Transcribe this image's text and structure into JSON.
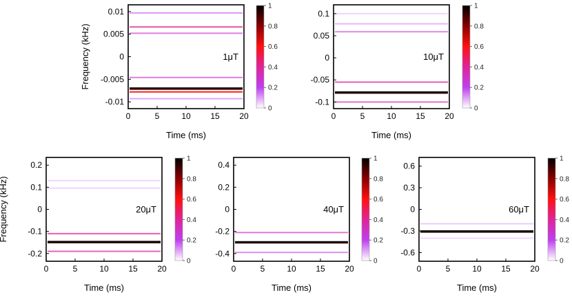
{
  "chart_data": [
    {
      "type": "heatmap",
      "field_label": "1μT",
      "xlabel": "Time (ms)",
      "ylabel": "Frequency (kHz)",
      "xlim": [
        0,
        20
      ],
      "ylim": [
        -0.0115,
        0.0115
      ],
      "xticks": [
        "0",
        "5",
        "10",
        "15",
        "20"
      ],
      "yticks": [
        {
          "v": 0.01,
          "label": "0.01"
        },
        {
          "v": 0.005,
          "label": "0.005"
        },
        {
          "v": 0,
          "label": "0"
        },
        {
          "v": -0.005,
          "label": "-0.005"
        },
        {
          "v": -0.01,
          "label": "-0.01"
        }
      ],
      "bands": [
        {
          "y": 0.0097,
          "intensity": 0.2
        },
        {
          "y": 0.0066,
          "intensity": 0.42
        },
        {
          "y": 0.0052,
          "intensity": 0.28
        },
        {
          "y": -0.0046,
          "intensity": 0.3
        },
        {
          "y": -0.0071,
          "intensity": 0.92
        },
        {
          "y": -0.0078,
          "intensity": 0.6
        },
        {
          "y": -0.0093,
          "intensity": 0.18
        }
      ],
      "colorbar": {
        "min": 0,
        "max": 1,
        "ticks": [
          "0",
          "0.2",
          "0.4",
          "0.6",
          "0.8",
          "1"
        ]
      }
    },
    {
      "type": "heatmap",
      "field_label": "10μT",
      "xlabel": "Time (ms)",
      "ylabel": "",
      "xlim": [
        0,
        20
      ],
      "ylim": [
        -0.115,
        0.12
      ],
      "xticks": [
        "0",
        "5",
        "10",
        "15",
        "20"
      ],
      "yticks": [
        {
          "v": 0.1,
          "label": "0.1"
        },
        {
          "v": 0.05,
          "label": "0.05"
        },
        {
          "v": 0,
          "label": "0"
        },
        {
          "v": -0.05,
          "label": "-0.05"
        },
        {
          "v": -0.1,
          "label": "-0.1"
        }
      ],
      "bands": [
        {
          "y": 0.1,
          "intensity": 0.1
        },
        {
          "y": 0.077,
          "intensity": 0.15
        },
        {
          "y": 0.059,
          "intensity": 0.25
        },
        {
          "y": -0.055,
          "intensity": 0.4
        },
        {
          "y": -0.079,
          "intensity": 0.95
        },
        {
          "y": -0.1,
          "intensity": 0.32
        }
      ],
      "colorbar": {
        "min": 0,
        "max": 1,
        "ticks": [
          "0",
          "0.2",
          "0.4",
          "0.6",
          "0.8",
          "1"
        ]
      }
    },
    {
      "type": "heatmap",
      "field_label": "20μT",
      "xlabel": "Time (ms)",
      "ylabel": "Frequency (kHz)",
      "xlim": [
        0,
        20
      ],
      "ylim": [
        -0.235,
        0.235
      ],
      "xticks": [
        "0",
        "5",
        "10",
        "15",
        "20"
      ],
      "yticks": [
        {
          "v": 0.2,
          "label": "0.2"
        },
        {
          "v": 0.1,
          "label": "0.1"
        },
        {
          "v": 0,
          "label": "0"
        },
        {
          "v": -0.1,
          "label": "-0.1"
        },
        {
          "v": -0.2,
          "label": "-0.2"
        }
      ],
      "bands": [
        {
          "y": 0.13,
          "intensity": 0.1
        },
        {
          "y": 0.096,
          "intensity": 0.1
        },
        {
          "y": -0.11,
          "intensity": 0.4
        },
        {
          "y": -0.149,
          "intensity": 0.95
        },
        {
          "y": -0.19,
          "intensity": 0.38
        }
      ],
      "colorbar": {
        "min": 0,
        "max": 1,
        "ticks": [
          "0",
          "0.2",
          "0.4",
          "0.6",
          "0.8",
          "1"
        ]
      }
    },
    {
      "type": "heatmap",
      "field_label": "40μT",
      "xlabel": "Time (ms)",
      "ylabel": "",
      "xlim": [
        0,
        20
      ],
      "ylim": [
        -0.47,
        0.47
      ],
      "xticks": [
        "0",
        "5",
        "10",
        "15",
        "20"
      ],
      "yticks": [
        {
          "v": 0.4,
          "label": "0.4"
        },
        {
          "v": 0.2,
          "label": "0.2"
        },
        {
          "v": 0,
          "label": "0"
        },
        {
          "v": -0.2,
          "label": "-0.2"
        },
        {
          "v": -0.4,
          "label": "-0.4"
        }
      ],
      "bands": [
        {
          "y": -0.21,
          "intensity": 0.3
        },
        {
          "y": -0.3,
          "intensity": 0.95
        },
        {
          "y": -0.39,
          "intensity": 0.22
        }
      ],
      "colorbar": {
        "min": 0,
        "max": 1,
        "ticks": [
          "0",
          "0.2",
          "0.4",
          "0.6",
          "0.8",
          "1"
        ]
      }
    },
    {
      "type": "heatmap",
      "field_label": "60μT",
      "xlabel": "Time (ms)",
      "ylabel": "",
      "xlim": [
        0,
        20
      ],
      "ylim": [
        -0.72,
        0.72
      ],
      "xticks": [
        "0",
        "5",
        "10",
        "15",
        "20"
      ],
      "yticks": [
        {
          "v": 0.6,
          "label": "0.6"
        },
        {
          "v": 0.3,
          "label": "0.3"
        },
        {
          "v": 0,
          "label": "0"
        },
        {
          "v": -0.3,
          "label": "-0.3"
        },
        {
          "v": -0.6,
          "label": "-0.6"
        }
      ],
      "bands": [
        {
          "y": -0.2,
          "intensity": 0.12
        },
        {
          "y": -0.31,
          "intensity": 0.95
        },
        {
          "y": -0.4,
          "intensity": 0.1
        }
      ],
      "colorbar": {
        "min": 0,
        "max": 1,
        "ticks": [
          "0",
          "0.2",
          "0.4",
          "0.6",
          "0.8",
          "1"
        ]
      }
    }
  ]
}
